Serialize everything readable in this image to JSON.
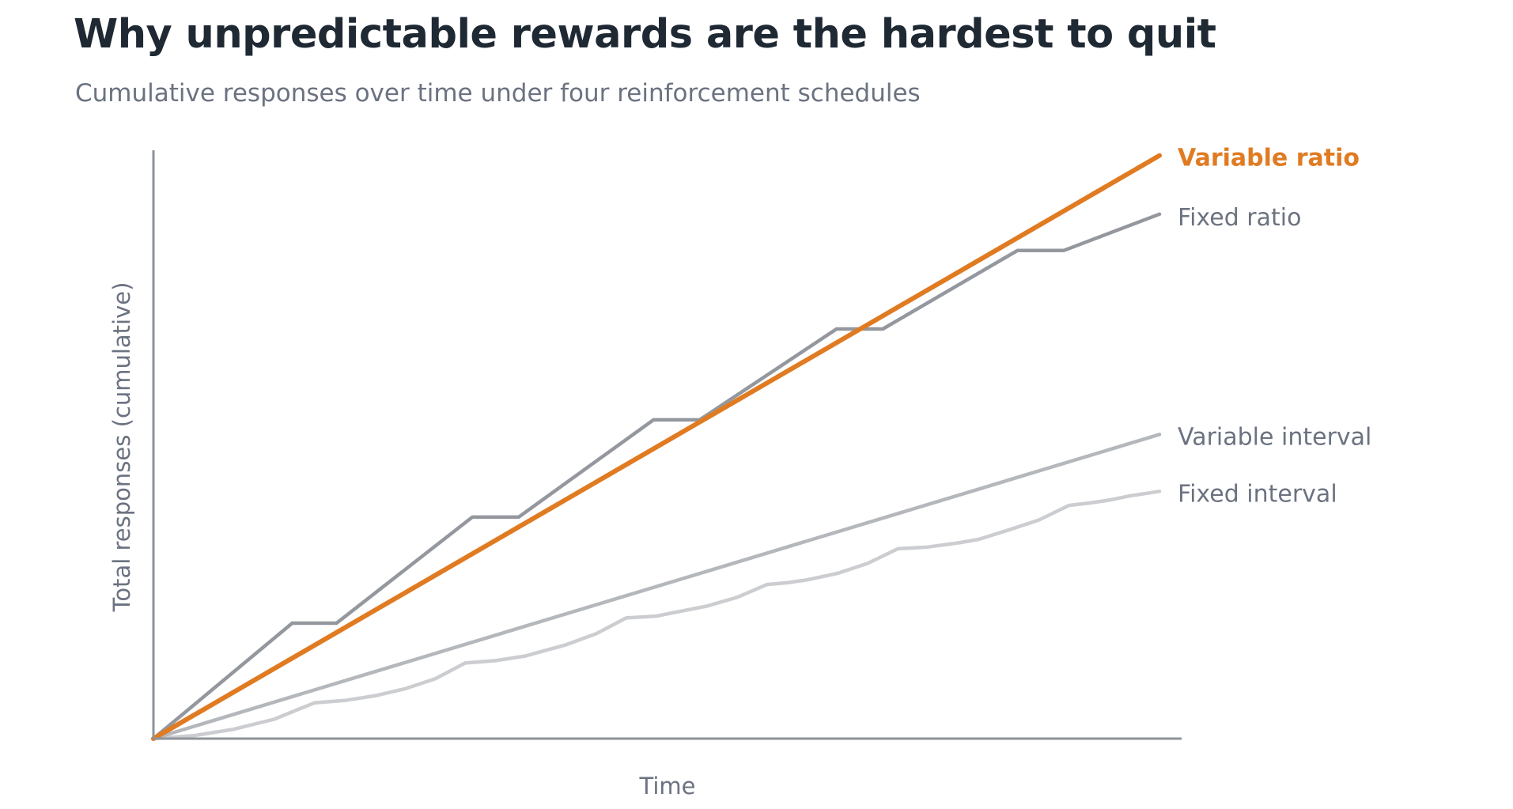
{
  "title": "Why unpredictable rewards are the hardest to quit",
  "subtitle": "Cumulative responses over time under four reinforcement schedules",
  "chart_data": {
    "type": "line",
    "title": "Why unpredictable rewards are the hardest to quit",
    "subtitle": "Cumulative responses over time under four reinforcement schedules",
    "xlabel": "Time",
    "ylabel": "Total responses (cumulative)",
    "xlim": [
      0,
      100
    ],
    "ylim": [
      0,
      100
    ],
    "grid": false,
    "legend": "direct labels at line ends",
    "series": [
      {
        "name": "Fixed interval",
        "color": "#cbcdd0",
        "x": [
          0,
          4,
          8,
          12,
          16,
          19,
          22,
          25,
          28,
          31,
          34,
          37,
          38,
          41,
          44,
          47,
          50,
          52,
          55,
          58,
          61,
          63,
          65,
          68,
          71,
          74,
          77,
          80,
          82,
          85,
          88,
          91,
          93,
          95,
          97,
          100
        ],
        "y": [
          0,
          0.5,
          1.6,
          3.3,
          6.1,
          6.5,
          7.3,
          8.5,
          10.2,
          12.9,
          13.3,
          14.1,
          14.6,
          16.0,
          17.9,
          20.6,
          20.9,
          21.6,
          22.6,
          24.1,
          26.3,
          26.6,
          27.1,
          28.2,
          29.9,
          32.4,
          32.7,
          33.4,
          34.0,
          35.6,
          37.3,
          39.8,
          40.2,
          40.7,
          41.4,
          42.2
        ]
      },
      {
        "name": "Variable interval",
        "color": "#b4b7bb",
        "x": [
          0,
          100
        ],
        "y": [
          0,
          51.9
        ]
      },
      {
        "name": "Fixed ratio",
        "color": "#94989e",
        "x": [
          0,
          13.8,
          18.2,
          31.7,
          36.3,
          49.7,
          54.3,
          67.9,
          72.5,
          85.9,
          90.5,
          100
        ],
        "y": [
          0,
          19.7,
          19.7,
          37.8,
          37.8,
          54.4,
          54.4,
          69.9,
          69.9,
          83.3,
          83.3,
          89.5
        ]
      },
      {
        "name": "Variable ratio",
        "color": "#e07b22",
        "x": [
          0,
          100
        ],
        "y": [
          0,
          99.5
        ]
      }
    ]
  }
}
